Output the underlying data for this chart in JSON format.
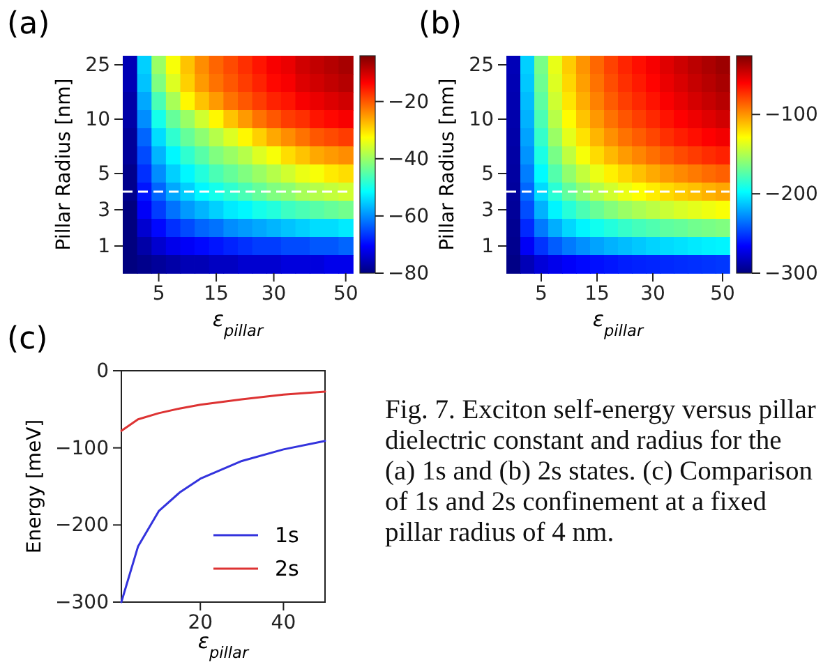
{
  "chart_data": [
    {
      "type": "heatmap",
      "title": "(a)",
      "xlabel": "ε$_{pillar}$",
      "ylabel": "Pillar Radius [nm]",
      "categories": [
        null,
        null,
        "5",
        null,
        null,
        null,
        "15",
        null,
        null,
        null,
        "30",
        null,
        null,
        null,
        null,
        "50"
      ],
      "y_categories": [
        "25",
        null,
        null,
        "10",
        null,
        null,
        "5",
        null,
        "3",
        null,
        "1",
        null
      ],
      "cells": [
        [
          -76,
          -55,
          -40,
          -33,
          -28,
          -24,
          -21,
          -19,
          -17,
          -15,
          -13,
          -12,
          -10,
          -9,
          -8,
          -7
        ],
        [
          -76,
          -56,
          -42,
          -35,
          -29,
          -25,
          -22,
          -20,
          -18,
          -16,
          -14,
          -13,
          -11,
          -10,
          -9,
          -8
        ],
        [
          -77,
          -58,
          -46,
          -39,
          -32,
          -28,
          -25,
          -22,
          -20,
          -18,
          -16,
          -15,
          -13,
          -12,
          -11,
          -10
        ],
        [
          -77,
          -60,
          -50,
          -44,
          -40,
          -36,
          -32,
          -28,
          -25,
          -22,
          -20,
          -18,
          -17,
          -15,
          -14,
          -13
        ],
        [
          -78,
          -63,
          -54,
          -48,
          -44,
          -41,
          -38,
          -35,
          -32,
          -29,
          -26,
          -24,
          -22,
          -20,
          -19,
          -18
        ],
        [
          -78,
          -65,
          -57,
          -52,
          -48,
          -45,
          -42,
          -40,
          -38,
          -35,
          -33,
          -30,
          -28,
          -26,
          -25,
          -24
        ],
        [
          -79,
          -67,
          -60,
          -55,
          -52,
          -49,
          -46,
          -44,
          -42,
          -40,
          -38,
          -36,
          -34,
          -33,
          -31,
          -30
        ],
        [
          -79,
          -69,
          -63,
          -58,
          -55,
          -52,
          -50,
          -48,
          -46,
          -44,
          -42,
          -41,
          -39,
          -38,
          -37,
          -36
        ],
        [
          -80,
          -71,
          -66,
          -62,
          -59,
          -57,
          -55,
          -53,
          -52,
          -50,
          -49,
          -47,
          -46,
          -45,
          -44,
          -43
        ],
        [
          -80,
          -74,
          -70,
          -67,
          -65,
          -63,
          -62,
          -60,
          -59,
          -58,
          -57,
          -56,
          -55,
          -54,
          -54,
          -53
        ],
        [
          -80,
          -77,
          -74,
          -72,
          -71,
          -70,
          -69,
          -68,
          -67,
          -66,
          -66,
          -65,
          -65,
          -64,
          -64,
          -63
        ],
        [
          -80,
          -79,
          -78,
          -77,
          -76,
          -76,
          -75,
          -75,
          -74,
          -74,
          -74,
          -73,
          -73,
          -73,
          -72,
          -72
        ]
      ],
      "clim": [
        -80,
        -4
      ],
      "cticks": [
        {
          "value": -20,
          "label": "−20"
        },
        {
          "value": -40,
          "label": "−40"
        },
        {
          "value": -60,
          "label": "−60"
        },
        {
          "value": -80,
          "label": "−80"
        }
      ]
    },
    {
      "type": "heatmap",
      "title": "(b)",
      "xlabel": "ε$_{pillar}$",
      "ylabel": "Pillar Radius [nm]",
      "categories": [
        null,
        null,
        "5",
        null,
        null,
        null,
        "15",
        null,
        null,
        null,
        "30",
        null,
        null,
        null,
        null,
        "50"
      ],
      "y_categories": [
        "25",
        null,
        null,
        "10",
        null,
        null,
        "5",
        null,
        "3",
        null,
        "1",
        null
      ],
      "cells": [
        [
          -285,
          -210,
          -165,
          -135,
          -115,
          -100,
          -88,
          -78,
          -70,
          -64,
          -58,
          -52,
          -47,
          -42,
          -38,
          -34
        ],
        [
          -286,
          -212,
          -168,
          -138,
          -118,
          -103,
          -91,
          -81,
          -73,
          -67,
          -61,
          -55,
          -50,
          -45,
          -41,
          -37
        ],
        [
          -287,
          -215,
          -172,
          -142,
          -122,
          -107,
          -95,
          -85,
          -77,
          -71,
          -65,
          -59,
          -54,
          -49,
          -45,
          -41
        ],
        [
          -288,
          -218,
          -177,
          -148,
          -128,
          -113,
          -101,
          -91,
          -83,
          -77,
          -71,
          -65,
          -60,
          -56,
          -52,
          -48
        ],
        [
          -289,
          -222,
          -183,
          -156,
          -136,
          -121,
          -109,
          -99,
          -91,
          -85,
          -79,
          -73,
          -68,
          -64,
          -60,
          -57
        ],
        [
          -290,
          -226,
          -190,
          -165,
          -146,
          -131,
          -119,
          -110,
          -102,
          -96,
          -90,
          -85,
          -80,
          -76,
          -72,
          -69
        ],
        [
          -291,
          -232,
          -198,
          -175,
          -158,
          -145,
          -134,
          -125,
          -118,
          -112,
          -106,
          -101,
          -97,
          -93,
          -89,
          -86
        ],
        [
          -292,
          -238,
          -207,
          -186,
          -171,
          -159,
          -149,
          -141,
          -134,
          -129,
          -124,
          -119,
          -115,
          -112,
          -108,
          -105
        ],
        [
          -293,
          -245,
          -218,
          -200,
          -187,
          -177,
          -169,
          -162,
          -156,
          -151,
          -147,
          -143,
          -139,
          -136,
          -133,
          -130
        ],
        [
          -295,
          -255,
          -233,
          -219,
          -208,
          -200,
          -193,
          -188,
          -183,
          -179,
          -176,
          -172,
          -170,
          -167,
          -165,
          -163
        ],
        [
          -296,
          -268,
          -252,
          -241,
          -233,
          -227,
          -222,
          -218,
          -215,
          -212,
          -209,
          -207,
          -205,
          -203,
          -201,
          -200
        ],
        [
          -298,
          -285,
          -276,
          -271,
          -267,
          -264,
          -262,
          -260,
          -258,
          -257,
          -256,
          -255,
          -254,
          -253,
          -252,
          -251
        ]
      ],
      "clim": [
        -300,
        -26
      ],
      "cticks": [
        {
          "value": -100,
          "label": "−100"
        },
        {
          "value": -200,
          "label": "−200"
        },
        {
          "value": -300,
          "label": "−300"
        }
      ]
    },
    {
      "type": "line",
      "title": "(c)",
      "xlabel": "ε$_{pillar}$",
      "ylabel": "Energy [meV]",
      "x": [
        1,
        5,
        10,
        15,
        20,
        30,
        40,
        50
      ],
      "series": [
        {
          "name": "1s",
          "color": "#3333dd",
          "values": [
            -300,
            -228,
            -182,
            -158,
            -140,
            -117,
            -102,
            -91
          ]
        },
        {
          "name": "2s",
          "color": "#dd3333",
          "values": [
            -78,
            -63,
            -55,
            -49,
            -44,
            -37,
            -31,
            -27
          ]
        }
      ],
      "xlim": [
        1,
        50
      ],
      "xticks": [
        20,
        40
      ],
      "ylim": [
        -300,
        0
      ],
      "yticks": [
        0,
        {
          "value": -100,
          "label": "−100"
        },
        {
          "value": -200,
          "label": "−200"
        },
        {
          "value": -300,
          "label": "−300"
        }
      ],
      "legend": "bottom right",
      "line_style": "solid",
      "annotations": [
        "Fig. 7. Exciton self-energy versus pillar dielectric constant and radius for the (a) 1s and (b) 2s states. (c) Comparison of 1s and 2s confinement at a fixed pillar radius of 4 nm."
      ]
    }
  ]
}
